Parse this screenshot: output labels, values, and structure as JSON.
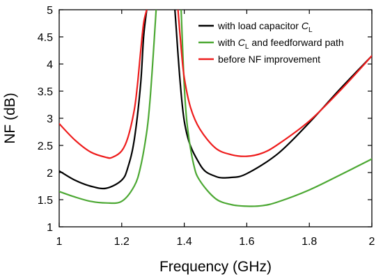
{
  "chart_data": {
    "type": "line",
    "xlabel": "Frequency (GHz)",
    "ylabel": "NF (dB)",
    "xlim": [
      1,
      2
    ],
    "ylim": [
      1,
      5
    ],
    "x_ticks": [
      "1",
      "1.2",
      "1.4",
      "1.6",
      "1.8",
      "2"
    ],
    "y_ticks": [
      "1",
      "1.5",
      "2",
      "2.5",
      "3",
      "3.5",
      "4",
      "4.5",
      "5"
    ],
    "legend_placement": "top-right",
    "grid": false,
    "series": [
      {
        "name": "with load capacitor C_L",
        "legend_main": "with load capacitor ",
        "legend_italic": "C",
        "legend_sub": "L",
        "legend_tail": "",
        "color": "#000000",
        "x": [
          1.0,
          1.05,
          1.1,
          1.15,
          1.2,
          1.22,
          1.24,
          1.26,
          1.27,
          1.28,
          1.3,
          1.32,
          1.33,
          1.34,
          1.35,
          1.37,
          1.4,
          1.45,
          1.5,
          1.55,
          1.6,
          1.7,
          1.8,
          1.9,
          2.0
        ],
        "y": [
          2.03,
          1.86,
          1.75,
          1.71,
          1.86,
          2.1,
          2.6,
          3.6,
          4.5,
          5.0,
          null,
          null,
          null,
          null,
          null,
          5.0,
          2.95,
          2.15,
          1.93,
          1.91,
          1.98,
          2.35,
          2.92,
          3.55,
          4.15
        ]
      },
      {
        "name": "with C_L and feedforward path",
        "legend_main": "with ",
        "legend_italic": "C",
        "legend_sub": "L",
        "legend_tail": " and feedforward path",
        "color": "#4ca833",
        "x": [
          1.0,
          1.05,
          1.1,
          1.15,
          1.2,
          1.24,
          1.26,
          1.28,
          1.29,
          1.3,
          1.31,
          1.33,
          1.35,
          1.37,
          1.39,
          1.4,
          1.41,
          1.43,
          1.45,
          1.5,
          1.55,
          1.6,
          1.65,
          1.7,
          1.8,
          1.9,
          2.0
        ],
        "y": [
          1.65,
          1.55,
          1.47,
          1.44,
          1.47,
          1.75,
          2.1,
          2.75,
          3.3,
          4.1,
          5.0,
          null,
          null,
          null,
          5.0,
          3.6,
          2.85,
          2.15,
          1.85,
          1.52,
          1.41,
          1.38,
          1.39,
          1.46,
          1.68,
          1.96,
          2.25
        ]
      },
      {
        "name": "before NF improvement",
        "legend_main": "before NF improvement",
        "legend_italic": "",
        "legend_sub": "",
        "legend_tail": "",
        "color": "#ee1c1c",
        "x": [
          1.0,
          1.05,
          1.1,
          1.15,
          1.17,
          1.2,
          1.22,
          1.24,
          1.25,
          1.26,
          1.27,
          1.28,
          1.3,
          1.32,
          1.35,
          1.37,
          1.38,
          1.39,
          1.4,
          1.42,
          1.45,
          1.5,
          1.55,
          1.6,
          1.65,
          1.7,
          1.8,
          1.9,
          2.0
        ],
        "y": [
          2.9,
          2.6,
          2.38,
          2.28,
          2.28,
          2.4,
          2.65,
          3.15,
          3.6,
          4.2,
          4.75,
          5.0,
          null,
          null,
          null,
          null,
          5.0,
          4.3,
          3.75,
          3.2,
          2.8,
          2.45,
          2.33,
          2.3,
          2.36,
          2.52,
          2.95,
          3.52,
          4.15
        ]
      }
    ]
  }
}
